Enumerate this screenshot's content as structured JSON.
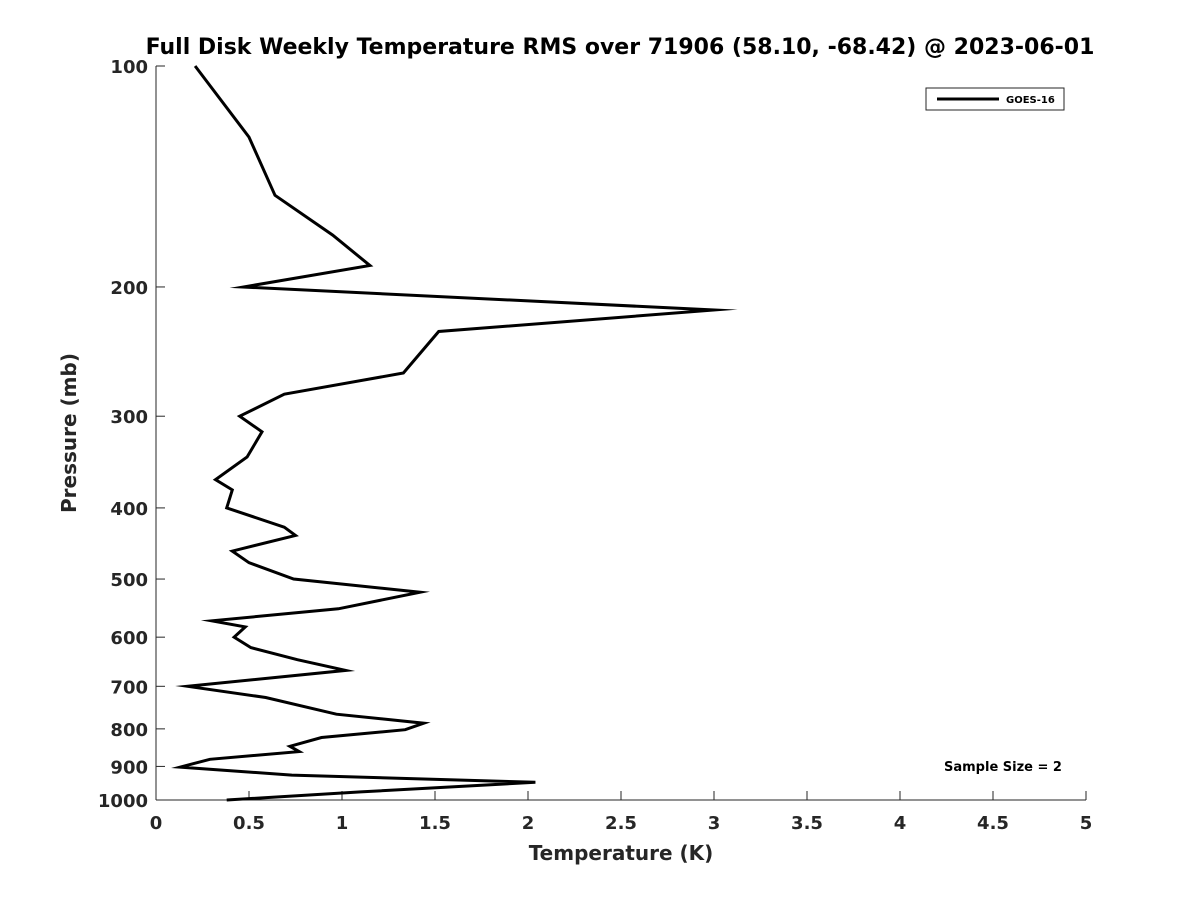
{
  "chart_data": {
    "type": "line",
    "title": "Full Disk Weekly Temperature RMS over 71906 (58.10, -68.42) @ 2023-06-01",
    "xlabel": "Temperature (K)",
    "ylabel": "Pressure (mb)",
    "xlim": [
      0,
      5
    ],
    "ylim": [
      100,
      1000
    ],
    "y_scale": "log",
    "y_reversed": true,
    "x_ticks": [
      "0",
      "0.5",
      "1",
      "1.5",
      "2",
      "2.5",
      "3",
      "3.5",
      "4",
      "4.5",
      "5"
    ],
    "y_ticks": [
      "100",
      "200",
      "300",
      "400",
      "500",
      "600",
      "700",
      "800",
      "900",
      "1000"
    ],
    "grid": false,
    "legend_position": "top-right",
    "annotation": "Sample Size = 2",
    "series": [
      {
        "name": "GOES-16",
        "color": "#000000",
        "x": [
          0.21,
          0.5,
          0.64,
          0.95,
          1.15,
          0.47,
          3.0,
          1.52,
          1.33,
          0.69,
          0.45,
          0.57,
          0.49,
          0.32,
          0.41,
          0.38,
          0.69,
          0.75,
          0.41,
          0.5,
          0.74,
          1.42,
          0.98,
          0.3,
          0.48,
          0.42,
          0.51,
          0.76,
          1.02,
          0.17,
          0.59,
          0.97,
          1.44,
          1.34,
          0.89,
          0.72,
          0.77,
          0.29,
          0.13,
          0.73,
          2.04,
          1.1,
          0.38
        ],
        "y": [
          100,
          125,
          150,
          170,
          187,
          200,
          215,
          230,
          262,
          280,
          300,
          315,
          341,
          366,
          378,
          400,
          425,
          436,
          458,
          475,
          500,
          521,
          549,
          570,
          581,
          600,
          620,
          644,
          666,
          700,
          725,
          764,
          786,
          802,
          822,
          845,
          859,
          880,
          902,
          925,
          946,
          975,
          1000
        ]
      }
    ]
  }
}
